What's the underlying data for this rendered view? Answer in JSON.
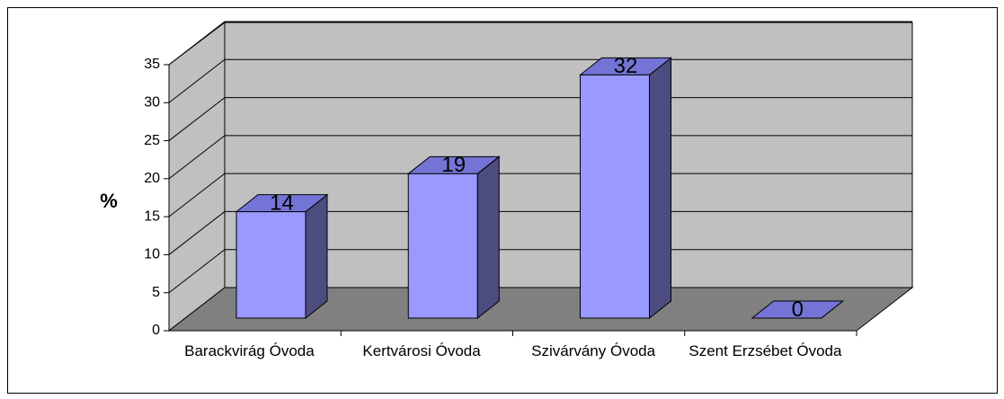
{
  "chart_data": {
    "type": "bar",
    "ylabel": "%",
    "categories": [
      "Barackvirág Óvoda",
      "Kertvárosi Óvoda",
      "Szivárvány Óvoda",
      "Szent Erzsébet Óvoda"
    ],
    "values": [
      14,
      19,
      32,
      0
    ],
    "color": "#9999ff",
    "ylim": [
      0,
      35
    ],
    "yticks": [
      0,
      5,
      10,
      15,
      20,
      25,
      30,
      35
    ],
    "grid": true
  }
}
